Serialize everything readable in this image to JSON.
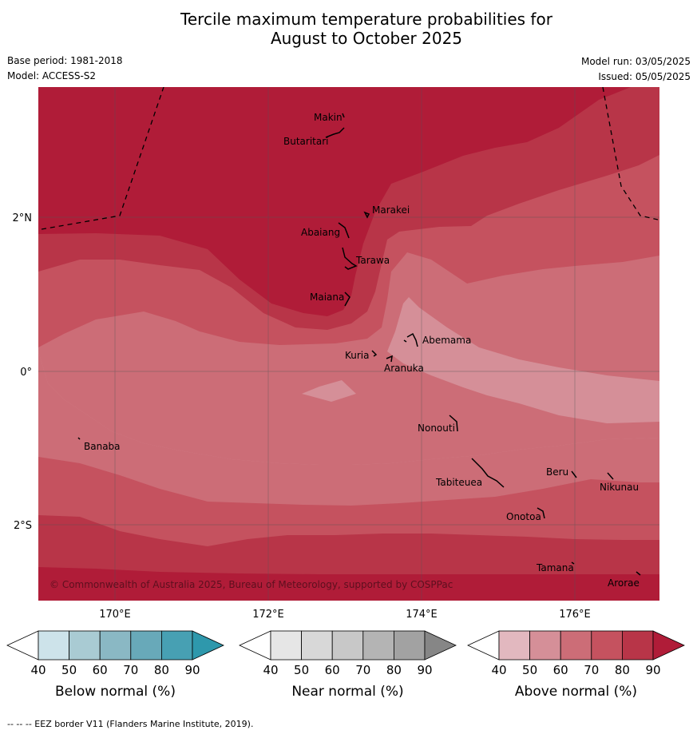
{
  "title_line1": "Tercile maximum temperature probabilities for",
  "title_line2": "August to October 2025",
  "meta": {
    "base_period": "Base period: 1981-2018",
    "model": "Model: ACCESS-S2",
    "model_run": "Model run: 03/05/2025",
    "issued": "Issued: 05/05/2025"
  },
  "copyright": "© Commonwealth of Australia 2025, Bureau of Meteorology, supported by COSPPac",
  "footnote": "--  --  -- EEZ border V11 (Flanders Marine Institute, 2019).",
  "axes": {
    "lat_labels": [
      "2°N",
      "0°",
      "2°S"
    ],
    "lon_labels": [
      "170°E",
      "172°E",
      "174°E",
      "176°E"
    ]
  },
  "places": {
    "makin": "Makin",
    "butaritari": "Butaritari",
    "marakei": "Marakei",
    "abaiang": "Abaiang",
    "tarawa": "Tarawa",
    "maiana": "Maiana",
    "abemama": "Abemama",
    "kuria": "Kuria",
    "aranuka": "Aranuka",
    "banaba": "Banaba",
    "nonouti": "Nonouti",
    "beru": "Beru",
    "nikunau": "Nikunau",
    "tabiteuea": "Tabiteuea",
    "onotoa": "Onotoa",
    "tamana": "Tamana",
    "arorae": "Arorae"
  },
  "colorbars": [
    {
      "label": "Below normal (%)",
      "ticks": [
        "40",
        "50",
        "60",
        "70",
        "80",
        "90"
      ],
      "colors": [
        "#ffffff",
        "#cde3ea",
        "#a9cbd3",
        "#8ab8c4",
        "#68a9b9",
        "#47a0b3",
        "#2e98ac"
      ]
    },
    {
      "label": "Near normal (%)",
      "ticks": [
        "40",
        "50",
        "60",
        "70",
        "80",
        "90"
      ],
      "colors": [
        "#ffffff",
        "#e6e6e6",
        "#d8d8d8",
        "#c8c8c8",
        "#b4b4b4",
        "#a2a2a2",
        "#868686"
      ]
    },
    {
      "label": "Above normal (%)",
      "ticks": [
        "40",
        "50",
        "60",
        "70",
        "80",
        "90"
      ],
      "colors": [
        "#ffffff",
        "#e2b8bf",
        "#d58f98",
        "#cc6d77",
        "#c5525f",
        "#b83548",
        "#b01c38"
      ]
    }
  ]
}
